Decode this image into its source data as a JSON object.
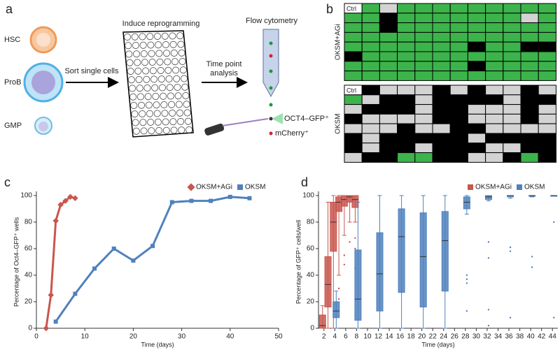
{
  "panel_labels": [
    "a",
    "b",
    "c",
    "d"
  ],
  "diagram": {
    "cells": [
      "HSC",
      "ProB",
      "GMP"
    ],
    "sort": "Sort single cells",
    "plate": "Induce reprogramming",
    "analysis": [
      "Time point",
      "analysis"
    ],
    "flow": "Flow cytometry",
    "gfp": "OCT4–GFP⁺",
    "mcherry": "mCherry⁺"
  },
  "grid_colors": {
    "C": "#ffffff",
    "G": "#3cb44b",
    "K": "#000000",
    "W": "#d3d3d3"
  },
  "grids": [
    {
      "label": "OKSM+AGi",
      "ctrl": "Ctrl",
      "rows": [
        "CGWGGGGGGGGG",
        "GGKGGGGGGGWG",
        "GGKGGGGGGGGG",
        "GGGGGGGGGGGG",
        "GGGGGGGKGGKK",
        "KGGGGGGGGGGG",
        "GGGGGGGKGGGG",
        "GGGGGGGGGGGG"
      ]
    },
    {
      "label": "OKSM",
      "ctrl": "Ctrl",
      "rows": [
        "CKWWWKWKWWKW",
        "GWKKWKKKKWKK",
        "WKKKWKKWWWKW",
        "KWWWWKKWWWKW",
        "WWWKWWKKWWWW",
        "KWKKKKKWKKKK",
        "KWKKWKKKWWKK",
        "WKKGGKKWWKGK"
      ]
    }
  ],
  "chart_data": [
    {
      "type": "line",
      "y_label": "Percentage of Oct4–GFP⁺ wells",
      "x_label": "Time (days)",
      "xlim": [
        0,
        50
      ],
      "xticks": [
        0,
        10,
        20,
        30,
        40,
        50
      ],
      "ylim": [
        0,
        100
      ],
      "yticks": [
        0,
        20,
        40,
        60,
        80,
        100
      ],
      "series": [
        {
          "name": "OKSM+AGi",
          "color": "#c9564d",
          "marker": "diamond",
          "x": [
            2,
            3,
            4,
            5,
            6,
            7,
            8
          ],
          "values": [
            0,
            25,
            81,
            93,
            96,
            99,
            98
          ]
        },
        {
          "name": "OKSM",
          "color": "#4f81bd",
          "marker": "square",
          "x": [
            4,
            8,
            12,
            16,
            20,
            24,
            28,
            32,
            36,
            40,
            44
          ],
          "values": [
            5,
            26,
            45,
            60,
            51,
            62,
            95,
            96,
            96,
            99,
            98
          ]
        }
      ]
    },
    {
      "type": "box",
      "y_label": "Percentage of GFP⁺ cells/well",
      "x_label": "Time (days)",
      "xlim": [
        1,
        45
      ],
      "xticks": [
        2,
        4,
        6,
        8,
        10,
        12,
        14,
        16,
        18,
        20,
        22,
        24,
        26,
        28,
        30,
        32,
        34,
        36,
        38,
        40,
        42,
        44
      ],
      "ylim": [
        0,
        100
      ],
      "yticks": [
        0,
        20,
        40,
        60,
        80,
        100
      ],
      "series": [
        {
          "name": "OKSM+AGi",
          "color": "#c9564d",
          "x": [
            2,
            3,
            4,
            5,
            6,
            7,
            8
          ],
          "stats": [
            [
              0,
              0,
              2,
              10,
              17
            ],
            [
              0,
              16,
              33,
              54,
              95
            ],
            [
              0,
              58,
              80,
              95,
              100
            ],
            [
              40,
              88,
              95,
              99,
              100
            ],
            [
              70,
              92,
              97,
              100,
              100
            ],
            [
              80,
              95,
              99,
              100,
              100
            ],
            [
              80,
              91,
              97,
              100,
              100
            ]
          ],
          "outliers": [
            [],
            [],
            [],
            [
              30,
              22
            ],
            [
              55,
              48
            ],
            [
              65
            ],
            [
              68,
              60,
              45
            ]
          ]
        },
        {
          "name": "OKSM",
          "color": "#4f81bd",
          "x": [
            4,
            8,
            12,
            16,
            20,
            24,
            28,
            32,
            36,
            40,
            44
          ],
          "stats": [
            [
              0,
              8,
              13,
              20,
              28
            ],
            [
              0,
              6,
              22,
              59,
              95
            ],
            [
              0,
              13,
              41,
              72,
              100
            ],
            [
              0,
              27,
              69,
              90,
              100
            ],
            [
              0,
              16,
              54,
              87,
              100
            ],
            [
              0,
              28,
              66,
              88,
              100
            ],
            [
              86,
              90,
              95,
              99,
              100
            ],
            [
              96,
              97,
              99,
              100,
              100
            ],
            [
              98,
              99,
              100,
              100,
              100
            ],
            [
              99,
              100,
              100,
              100,
              100
            ],
            [
              100,
              100,
              100,
              100,
              100
            ]
          ],
          "outliers": [
            [],
            [],
            [],
            [],
            [],
            [],
            [
              40,
              37,
              34,
              13
            ],
            [
              65,
              53,
              14,
              2
            ],
            [
              61,
              58,
              8
            ],
            [
              54,
              46
            ],
            [
              80,
              8
            ]
          ]
        }
      ]
    }
  ]
}
